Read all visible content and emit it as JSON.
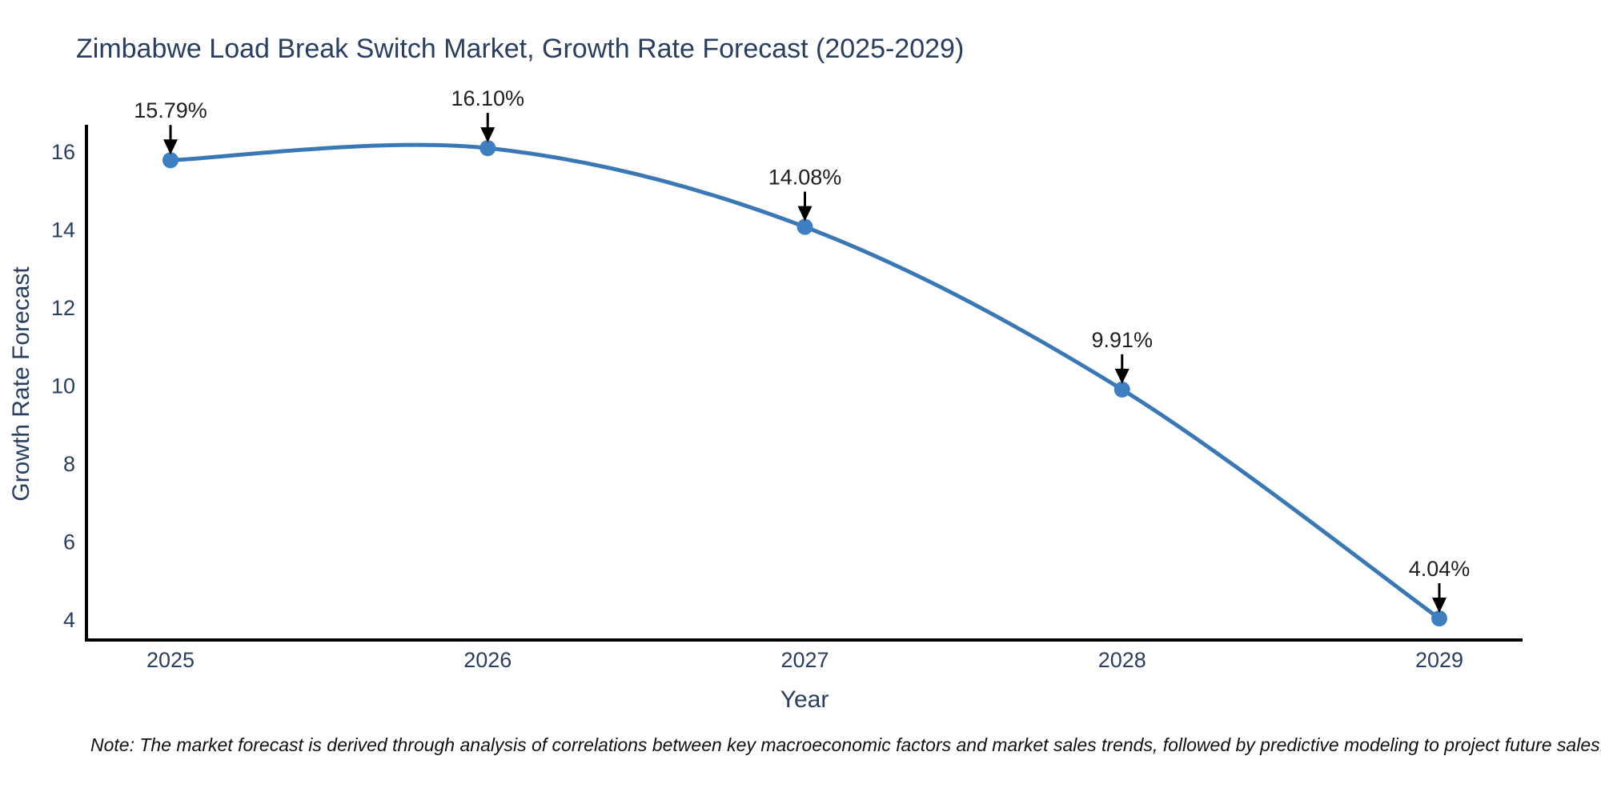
{
  "chart_data": {
    "type": "line",
    "title": "Zimbabwe Load Break Switch Market, Growth Rate Forecast (2025-2029)",
    "xlabel": "Year",
    "ylabel": "Growth Rate Forecast",
    "categories": [
      "2025",
      "2026",
      "2027",
      "2028",
      "2029"
    ],
    "values": [
      15.79,
      16.1,
      14.08,
      9.91,
      4.04
    ],
    "point_labels": [
      "15.79%",
      "16.10%",
      "14.08%",
      "9.91%",
      "4.04%"
    ],
    "yticks": [
      4,
      6,
      8,
      10,
      12,
      14,
      16
    ],
    "ylim": [
      3.49,
      16.66
    ],
    "line_shape": "spline",
    "grid": false,
    "legend": "none",
    "colors": {
      "line": "#3a78b5",
      "marker": "#3d7fc1",
      "axis": "#000000",
      "tick_label": "#2a3f5f",
      "title": "#2a3f5f",
      "annotation_text": "#1f1f1f",
      "arrow": "#000000",
      "background": "#ffffff"
    }
  },
  "note": "Note: The market forecast is derived through analysis of correlations between key macroeconomic factors and market sales trends, followed by predictive modeling to project future sales."
}
